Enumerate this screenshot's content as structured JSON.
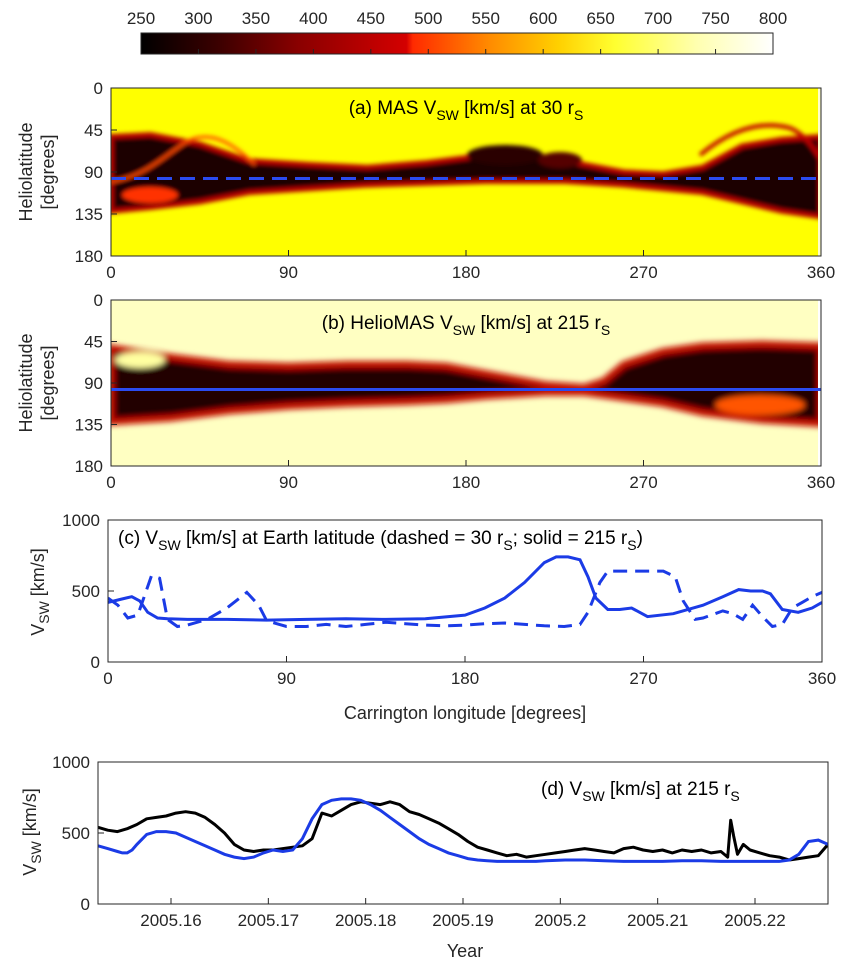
{
  "colorbar": {
    "ticks": [
      "250",
      "300",
      "350",
      "400",
      "450",
      "500",
      "550",
      "600",
      "650",
      "700",
      "750",
      "800"
    ],
    "min": 250,
    "max": 800,
    "colors": [
      "#000000",
      "#3a0000",
      "#8a0000",
      "#d40000",
      "#ff3000",
      "#ff8a00",
      "#ffd200",
      "#ffff40",
      "#ffffc0",
      "#ffffff"
    ]
  },
  "panels": {
    "a": {
      "title": "(a) MAS V",
      "title_sub": "SW",
      "title_rest": " [km/s] at 30 r",
      "title_sub2": "S",
      "ylabel_1": "Heliolatitude",
      "ylabel_2": "[degrees]",
      "yticks": [
        "0",
        "45",
        "90",
        "135",
        "180"
      ],
      "xticks": [
        "0",
        "90",
        "180",
        "270",
        "360"
      ],
      "earth_line_style": "dashed",
      "earth_latitude": 97
    },
    "b": {
      "title": "(b) HelioMAS V",
      "title_sub": "SW",
      "title_rest": " [km/s] at 215 r",
      "title_sub2": "S",
      "ylabel_1": "Heliolatitude",
      "ylabel_2": "[degrees]",
      "yticks": [
        "0",
        "45",
        "90",
        "135",
        "180"
      ],
      "xticks": [
        "0",
        "90",
        "180",
        "270",
        "360"
      ],
      "earth_line_style": "solid",
      "earth_latitude": 97
    },
    "c": {
      "title_1": "(c) V",
      "title_sub": "SW",
      "title_2": " [km/s] at Earth latitude (dashed = 30 r",
      "title_sub2": "S",
      "title_3": "; solid = 215 r",
      "title_sub3": "S",
      "title_4": ")",
      "ylabel": "V",
      "ylabel_sub": "SW",
      "ylabel_rest": " [km/s]",
      "xlabel": "Carrington longitude [degrees]",
      "yticks": [
        "0",
        "500",
        "1000"
      ],
      "xticks": [
        "0",
        "90",
        "180",
        "270",
        "360"
      ]
    },
    "d": {
      "title_1": "(d) V",
      "title_sub": "SW",
      "title_2": " [km/s] at 215 r",
      "title_sub2": "S",
      "ylabel": "V",
      "ylabel_sub": "SW",
      "ylabel_rest": " [km/s]",
      "xlabel": "Year",
      "yticks": [
        "0",
        "500",
        "1000"
      ],
      "xticks": [
        "2005.16",
        "2005.17",
        "2005.18",
        "2005.19",
        "2005.2",
        "2005.21",
        "2005.22"
      ]
    }
  },
  "colors": {
    "model": "#1b3be6",
    "observed": "#000000",
    "earth_line": "#2b4bf0"
  },
  "chart_data": [
    {
      "type": "heatmap",
      "title": "(a) MAS VSW [km/s] at 30 rS",
      "ylabel": "Heliolatitude [degrees]",
      "xlim": [
        0,
        360
      ],
      "ylim": [
        0,
        180
      ],
      "note_bands": [
        [
          0,
          0,
          0,
          0
        ]
      ],
      "slow_band_upper": [
        [
          0,
          52
        ],
        [
          20,
          50
        ],
        [
          45,
          60
        ],
        [
          70,
          78
        ],
        [
          100,
          82
        ],
        [
          130,
          85
        ],
        [
          160,
          80
        ],
        [
          190,
          72
        ],
        [
          210,
          70
        ],
        [
          230,
          78
        ],
        [
          260,
          90
        ],
        [
          280,
          92
        ],
        [
          300,
          85
        ],
        [
          320,
          62
        ],
        [
          340,
          55
        ],
        [
          360,
          52
        ]
      ],
      "slow_band_lower": [
        [
          0,
          132
        ],
        [
          20,
          128
        ],
        [
          45,
          122
        ],
        [
          70,
          112
        ],
        [
          100,
          108
        ],
        [
          130,
          104
        ],
        [
          160,
          102
        ],
        [
          190,
          100
        ],
        [
          210,
          100
        ],
        [
          230,
          100
        ],
        [
          260,
          104
        ],
        [
          280,
          108
        ],
        [
          300,
          112
        ],
        [
          320,
          122
        ],
        [
          340,
          132
        ],
        [
          360,
          138
        ]
      ]
    },
    {
      "type": "heatmap",
      "title": "(b) HelioMAS VSW [km/s] at 215 rS",
      "ylabel": "Heliolatitude [degrees]",
      "xlim": [
        0,
        360
      ],
      "ylim": [
        0,
        180
      ],
      "slow_band_upper": [
        [
          0,
          52
        ],
        [
          30,
          62
        ],
        [
          60,
          70
        ],
        [
          90,
          72
        ],
        [
          120,
          70
        ],
        [
          150,
          70
        ],
        [
          170,
          72
        ],
        [
          190,
          80
        ],
        [
          220,
          92
        ],
        [
          240,
          95
        ],
        [
          250,
          88
        ],
        [
          260,
          70
        ],
        [
          280,
          56
        ],
        [
          300,
          50
        ],
        [
          330,
          48
        ],
        [
          360,
          50
        ]
      ],
      "slow_band_lower": [
        [
          0,
          132
        ],
        [
          30,
          128
        ],
        [
          60,
          120
        ],
        [
          90,
          115
        ],
        [
          120,
          112
        ],
        [
          150,
          110
        ],
        [
          170,
          108
        ],
        [
          190,
          104
        ],
        [
          220,
          100
        ],
        [
          240,
          100
        ],
        [
          260,
          106
        ],
        [
          280,
          112
        ],
        [
          300,
          122
        ],
        [
          330,
          130
        ],
        [
          360,
          134
        ]
      ]
    },
    {
      "type": "line",
      "title": "(c) VSW [km/s] at Earth latitude (dashed = 30 rS; solid = 215 rS)",
      "xlabel": "Carrington longitude [degrees]",
      "ylabel": "VSW [km/s]",
      "xlim": [
        0,
        360
      ],
      "ylim": [
        0,
        1000
      ],
      "series": [
        {
          "name": "dashed = 30 rS",
          "style": "dashed",
          "x": [
            0,
            5,
            10,
            15,
            18,
            22,
            26,
            30,
            35,
            40,
            50,
            60,
            70,
            76,
            80,
            90,
            100,
            110,
            120,
            130,
            140,
            150,
            160,
            170,
            180,
            190,
            200,
            210,
            220,
            230,
            238,
            242,
            248,
            252,
            256,
            260,
            270,
            280,
            286,
            290,
            296,
            300,
            310,
            315,
            320,
            325,
            330,
            335,
            340,
            345,
            350,
            355,
            360
          ],
          "y": [
            450,
            400,
            310,
            330,
            450,
            610,
            590,
            300,
            250,
            260,
            300,
            380,
            490,
            400,
            290,
            250,
            250,
            265,
            250,
            265,
            280,
            270,
            260,
            255,
            260,
            270,
            275,
            265,
            255,
            250,
            265,
            350,
            560,
            640,
            640,
            640,
            640,
            640,
            600,
            430,
            300,
            310,
            360,
            340,
            300,
            400,
            320,
            250,
            265,
            380,
            420,
            460,
            490
          ]
        },
        {
          "name": "solid = 215 rS",
          "style": "solid",
          "x": [
            0,
            6,
            12,
            16,
            20,
            25,
            30,
            40,
            60,
            80,
            100,
            120,
            140,
            160,
            180,
            190,
            200,
            210,
            220,
            226,
            232,
            238,
            242,
            246,
            252,
            258,
            264,
            272,
            285,
            300,
            310,
            318,
            324,
            330,
            334,
            340,
            348,
            355,
            360
          ],
          "y": [
            420,
            440,
            460,
            430,
            350,
            310,
            305,
            300,
            300,
            295,
            300,
            305,
            300,
            305,
            330,
            380,
            450,
            560,
            700,
            740,
            740,
            720,
            600,
            450,
            370,
            370,
            380,
            320,
            340,
            400,
            460,
            510,
            500,
            500,
            480,
            370,
            350,
            380,
            420
          ]
        }
      ]
    },
    {
      "type": "line",
      "title": "(d) VSW [km/s] at 215 rS",
      "xlabel": "Year",
      "ylabel": "VSW [km/s]",
      "xlim": [
        2005.1525,
        2005.2275
      ],
      "ylim": [
        0,
        1000
      ],
      "series": [
        {
          "name": "",
          "color": "black",
          "x": [
            2005.1525,
            2005.1535,
            2005.1545,
            2005.1555,
            2005.1565,
            2005.1575,
            2005.1585,
            2005.1595,
            2005.1605,
            2005.1615,
            2005.1625,
            2005.1635,
            2005.1645,
            2005.1655,
            2005.1665,
            2005.1675,
            2005.1685,
            2005.1695,
            2005.1705,
            2005.1715,
            2005.1725,
            2005.1735,
            2005.1745,
            2005.1755,
            2005.1765,
            2005.1775,
            2005.1785,
            2005.1795,
            2005.1805,
            2005.1815,
            2005.1825,
            2005.1835,
            2005.1845,
            2005.1855,
            2005.1865,
            2005.1875,
            2005.1885,
            2005.1895,
            2005.1905,
            2005.1915,
            2005.1925,
            2005.1935,
            2005.1945,
            2005.1955,
            2005.1965,
            2005.1975,
            2005.1985,
            2005.1995,
            2005.2005,
            2005.2015,
            2005.2025,
            2005.2035,
            2005.2045,
            2005.2055,
            2005.2065,
            2005.2075,
            2005.2085,
            2005.2095,
            2005.2105,
            2005.2115,
            2005.2125,
            2005.2135,
            2005.2145,
            2005.2155,
            2005.2165,
            2005.2172,
            2005.2175,
            2005.2178,
            2005.2182,
            2005.2188,
            2005.2195,
            2005.2205,
            2005.2215,
            2005.2225,
            2005.2235,
            2005.2245,
            2005.2255,
            2005.2265,
            2005.2275
          ],
          "y": [
            540,
            520,
            510,
            530,
            560,
            600,
            610,
            620,
            640,
            650,
            640,
            610,
            560,
            500,
            420,
            380,
            370,
            380,
            380,
            390,
            400,
            410,
            460,
            640,
            620,
            660,
            700,
            720,
            710,
            700,
            720,
            700,
            650,
            630,
            600,
            570,
            530,
            490,
            440,
            400,
            380,
            360,
            340,
            350,
            330,
            340,
            350,
            360,
            370,
            380,
            390,
            380,
            370,
            360,
            390,
            400,
            380,
            370,
            380,
            360,
            380,
            370,
            380,
            360,
            370,
            330,
            590,
            480,
            350,
            420,
            380,
            360,
            340,
            330,
            310,
            320,
            330,
            340,
            420
          ]
        },
        {
          "name": "",
          "color": "blue",
          "x": [
            2005.1525,
            2005.1535,
            2005.1545,
            2005.155,
            2005.1555,
            2005.156,
            2005.1565,
            2005.1575,
            2005.1585,
            2005.1595,
            2005.1605,
            2005.1615,
            2005.1625,
            2005.1635,
            2005.1645,
            2005.1655,
            2005.1665,
            2005.1675,
            2005.1685,
            2005.1695,
            2005.1705,
            2005.1715,
            2005.1725,
            2005.1735,
            2005.1745,
            2005.1755,
            2005.1765,
            2005.1775,
            2005.1785,
            2005.1795,
            2005.1805,
            2005.1815,
            2005.1825,
            2005.1835,
            2005.1845,
            2005.1855,
            2005.1865,
            2005.1875,
            2005.1885,
            2005.1895,
            2005.1905,
            2005.1915,
            2005.1925,
            2005.1935,
            2005.1945,
            2005.1955,
            2005.1965,
            2005.1975,
            2005.1985,
            2005.2005,
            2005.2025,
            2005.2045,
            2005.2065,
            2005.2085,
            2005.2105,
            2005.2125,
            2005.2145,
            2005.2165,
            2005.2185,
            2005.2205,
            2005.2215,
            2005.2225,
            2005.2235,
            2005.2245,
            2005.2255,
            2005.2265,
            2005.2275
          ],
          "y": [
            410,
            390,
            370,
            360,
            360,
            380,
            420,
            490,
            510,
            510,
            500,
            470,
            440,
            410,
            380,
            350,
            330,
            320,
            330,
            360,
            380,
            370,
            380,
            460,
            600,
            700,
            730,
            740,
            740,
            730,
            700,
            660,
            610,
            560,
            510,
            460,
            420,
            390,
            360,
            340,
            320,
            310,
            305,
            300,
            300,
            300,
            300,
            300,
            305,
            310,
            310,
            305,
            300,
            300,
            300,
            305,
            305,
            300,
            300,
            300,
            300,
            300,
            310,
            350,
            440,
            450,
            420
          ]
        }
      ]
    }
  ]
}
